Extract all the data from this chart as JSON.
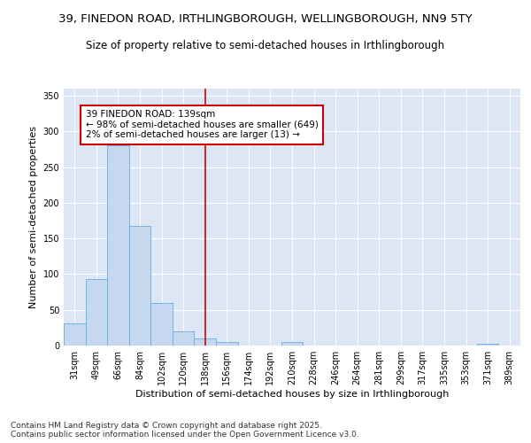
{
  "title_line1": "39, FINEDON ROAD, IRTHLINGBOROUGH, WELLINGBOROUGH, NN9 5TY",
  "title_line2": "Size of property relative to semi-detached houses in Irthlingborough",
  "xlabel": "Distribution of semi-detached houses by size in Irthlingborough",
  "ylabel": "Number of semi-detached properties",
  "categories": [
    "31sqm",
    "49sqm",
    "66sqm",
    "84sqm",
    "102sqm",
    "120sqm",
    "138sqm",
    "156sqm",
    "174sqm",
    "192sqm",
    "210sqm",
    "228sqm",
    "246sqm",
    "264sqm",
    "281sqm",
    "299sqm",
    "317sqm",
    "335sqm",
    "353sqm",
    "371sqm",
    "389sqm"
  ],
  "bar_heights": [
    31,
    93,
    280,
    167,
    60,
    20,
    10,
    5,
    0,
    0,
    5,
    0,
    0,
    0,
    0,
    0,
    0,
    0,
    0,
    3,
    0
  ],
  "bar_color": "#c5d8f0",
  "bar_edge_color": "#6aaee0",
  "red_line_index": 6,
  "red_line_color": "#cc0000",
  "annotation_title": "39 FINEDON ROAD: 139sqm",
  "annotation_line1": "← 98% of semi-detached houses are smaller (649)",
  "annotation_line2": "2% of semi-detached houses are larger (13) →",
  "annotation_box_color": "#cc0000",
  "ylim": [
    0,
    360
  ],
  "yticks": [
    0,
    50,
    100,
    150,
    200,
    250,
    300,
    350
  ],
  "background_color": "#dce6f5",
  "footer_line1": "Contains HM Land Registry data © Crown copyright and database right 2025.",
  "footer_line2": "Contains public sector information licensed under the Open Government Licence v3.0.",
  "title_fontsize": 9.5,
  "subtitle_fontsize": 8.5,
  "axis_label_fontsize": 8,
  "tick_fontsize": 7,
  "annotation_fontsize": 7.5,
  "footer_fontsize": 6.5
}
